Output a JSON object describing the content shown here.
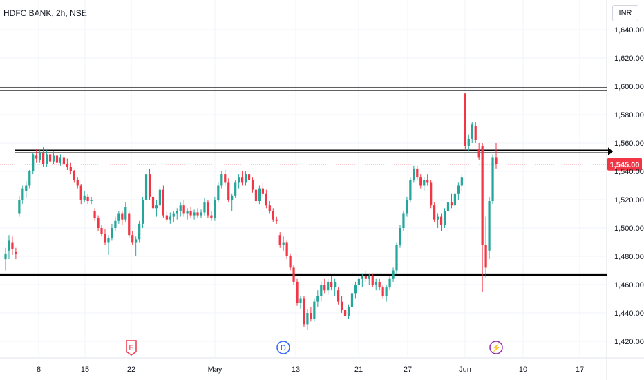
{
  "header": {
    "title": "HDFC BANK, 2h, NSE"
  },
  "currency": "INR",
  "price_label": "1,545.00",
  "colors": {
    "up": "#26a69a",
    "down": "#f23645",
    "price_line": "#f23645"
  },
  "events": [
    {
      "icon": "earnings-icon",
      "letter": "E",
      "color": "#f23645",
      "x_label": "22"
    },
    {
      "icon": "dividend-icon",
      "letter": "D",
      "color": "#2962ff",
      "x_label": "13"
    },
    {
      "icon": "split-icon",
      "letter": "⚡",
      "color": "#9c27b0",
      "x_label": "Jun"
    }
  ],
  "chart_data": {
    "type": "candlestick",
    "title": "HDFC BANK, 2h, NSE",
    "currency": "INR",
    "last_price": 1545.0,
    "ylim": [
      1410,
      1660
    ],
    "y_ticks": [
      1420,
      1440,
      1460,
      1480,
      1500,
      1520,
      1540,
      1560,
      1580,
      1600,
      1620,
      1640
    ],
    "y_tick_labels": [
      "1,420.00",
      "1,440.00",
      "1,460.00",
      "1,480.00",
      "1,500.00",
      "1,520.00",
      "1,540.00",
      "1,560.00",
      "1,580.00",
      "1,600.00",
      "1,620.00",
      "1,640.00"
    ],
    "x_tick_labels": [
      "8",
      "15",
      "22",
      "May",
      "13",
      "21",
      "27",
      "Jun",
      "10",
      "17"
    ],
    "horizontal_levels": [
      1598,
      1554,
      1467
    ],
    "candles": [
      {
        "o": 1478,
        "h": 1486,
        "l": 1470,
        "c": 1482
      },
      {
        "o": 1484,
        "h": 1495,
        "l": 1478,
        "c": 1491
      },
      {
        "o": 1490,
        "h": 1494,
        "l": 1481,
        "c": 1485
      },
      {
        "o": 1483,
        "h": 1486,
        "l": 1478,
        "c": 1482
      },
      {
        "o": 1510,
        "h": 1523,
        "l": 1508,
        "c": 1520
      },
      {
        "o": 1520,
        "h": 1530,
        "l": 1517,
        "c": 1528
      },
      {
        "o": 1526,
        "h": 1533,
        "l": 1521,
        "c": 1530
      },
      {
        "o": 1530,
        "h": 1541,
        "l": 1528,
        "c": 1540
      },
      {
        "o": 1540,
        "h": 1553,
        "l": 1538,
        "c": 1552
      },
      {
        "o": 1551,
        "h": 1556,
        "l": 1546,
        "c": 1549
      },
      {
        "o": 1548,
        "h": 1556,
        "l": 1546,
        "c": 1553
      },
      {
        "o": 1553,
        "h": 1557,
        "l": 1543,
        "c": 1545
      },
      {
        "o": 1545,
        "h": 1555,
        "l": 1543,
        "c": 1552
      },
      {
        "o": 1552,
        "h": 1555,
        "l": 1545,
        "c": 1547
      },
      {
        "o": 1547,
        "h": 1554,
        "l": 1545,
        "c": 1551
      },
      {
        "o": 1551,
        "h": 1553,
        "l": 1544,
        "c": 1546
      },
      {
        "o": 1546,
        "h": 1552,
        "l": 1544,
        "c": 1550
      },
      {
        "o": 1550,
        "h": 1552,
        "l": 1543,
        "c": 1545
      },
      {
        "o": 1545,
        "h": 1549,
        "l": 1541,
        "c": 1543
      },
      {
        "o": 1543,
        "h": 1546,
        "l": 1538,
        "c": 1540
      },
      {
        "o": 1540,
        "h": 1541,
        "l": 1532,
        "c": 1534
      },
      {
        "o": 1534,
        "h": 1536,
        "l": 1528,
        "c": 1530
      },
      {
        "o": 1530,
        "h": 1531,
        "l": 1517,
        "c": 1520
      },
      {
        "o": 1520,
        "h": 1526,
        "l": 1518,
        "c": 1523
      },
      {
        "o": 1522,
        "h": 1524,
        "l": 1517,
        "c": 1519
      },
      {
        "o": 1519,
        "h": 1522,
        "l": 1517,
        "c": 1520
      },
      {
        "o": 1512,
        "h": 1514,
        "l": 1505,
        "c": 1507
      },
      {
        "o": 1507,
        "h": 1509,
        "l": 1498,
        "c": 1500
      },
      {
        "o": 1500,
        "h": 1502,
        "l": 1494,
        "c": 1496
      },
      {
        "o": 1496,
        "h": 1499,
        "l": 1488,
        "c": 1490
      },
      {
        "o": 1490,
        "h": 1495,
        "l": 1481,
        "c": 1493
      },
      {
        "o": 1493,
        "h": 1503,
        "l": 1491,
        "c": 1500
      },
      {
        "o": 1500,
        "h": 1508,
        "l": 1498,
        "c": 1505
      },
      {
        "o": 1505,
        "h": 1512,
        "l": 1503,
        "c": 1510
      },
      {
        "o": 1510,
        "h": 1512,
        "l": 1502,
        "c": 1506
      },
      {
        "o": 1506,
        "h": 1518,
        "l": 1504,
        "c": 1515
      },
      {
        "o": 1510,
        "h": 1512,
        "l": 1493,
        "c": 1495
      },
      {
        "o": 1495,
        "h": 1498,
        "l": 1488,
        "c": 1490
      },
      {
        "o": 1490,
        "h": 1494,
        "l": 1480,
        "c": 1492
      },
      {
        "o": 1492,
        "h": 1505,
        "l": 1490,
        "c": 1503
      },
      {
        "o": 1503,
        "h": 1522,
        "l": 1500,
        "c": 1520
      },
      {
        "o": 1520,
        "h": 1542,
        "l": 1517,
        "c": 1538
      },
      {
        "o": 1538,
        "h": 1542,
        "l": 1520,
        "c": 1522
      },
      {
        "o": 1522,
        "h": 1526,
        "l": 1512,
        "c": 1514
      },
      {
        "o": 1514,
        "h": 1520,
        "l": 1508,
        "c": 1516
      },
      {
        "o": 1516,
        "h": 1530,
        "l": 1512,
        "c": 1527
      },
      {
        "o": 1527,
        "h": 1530,
        "l": 1507,
        "c": 1509
      },
      {
        "o": 1509,
        "h": 1512,
        "l": 1504,
        "c": 1506
      },
      {
        "o": 1506,
        "h": 1511,
        "l": 1503,
        "c": 1508
      },
      {
        "o": 1508,
        "h": 1512,
        "l": 1504,
        "c": 1510
      },
      {
        "o": 1510,
        "h": 1514,
        "l": 1506,
        "c": 1512
      },
      {
        "o": 1512,
        "h": 1518,
        "l": 1508,
        "c": 1516
      },
      {
        "o": 1516,
        "h": 1520,
        "l": 1508,
        "c": 1510
      },
      {
        "o": 1510,
        "h": 1514,
        "l": 1506,
        "c": 1512
      },
      {
        "o": 1512,
        "h": 1515,
        "l": 1507,
        "c": 1509
      },
      {
        "o": 1509,
        "h": 1513,
        "l": 1506,
        "c": 1511
      },
      {
        "o": 1511,
        "h": 1514,
        "l": 1507,
        "c": 1509
      },
      {
        "o": 1509,
        "h": 1513,
        "l": 1507,
        "c": 1511
      },
      {
        "o": 1511,
        "h": 1521,
        "l": 1509,
        "c": 1518
      },
      {
        "o": 1518,
        "h": 1520,
        "l": 1507,
        "c": 1509
      },
      {
        "o": 1509,
        "h": 1512,
        "l": 1505,
        "c": 1507
      },
      {
        "o": 1507,
        "h": 1522,
        "l": 1505,
        "c": 1520
      },
      {
        "o": 1520,
        "h": 1532,
        "l": 1518,
        "c": 1530
      },
      {
        "o": 1530,
        "h": 1540,
        "l": 1528,
        "c": 1538
      },
      {
        "o": 1538,
        "h": 1541,
        "l": 1530,
        "c": 1532
      },
      {
        "o": 1532,
        "h": 1535,
        "l": 1518,
        "c": 1520
      },
      {
        "o": 1520,
        "h": 1524,
        "l": 1512,
        "c": 1523
      },
      {
        "o": 1523,
        "h": 1534,
        "l": 1521,
        "c": 1532
      },
      {
        "o": 1532,
        "h": 1538,
        "l": 1528,
        "c": 1536
      },
      {
        "o": 1536,
        "h": 1540,
        "l": 1530,
        "c": 1532
      },
      {
        "o": 1532,
        "h": 1540,
        "l": 1530,
        "c": 1538
      },
      {
        "o": 1538,
        "h": 1540,
        "l": 1532,
        "c": 1534
      },
      {
        "o": 1534,
        "h": 1536,
        "l": 1525,
        "c": 1527
      },
      {
        "o": 1527,
        "h": 1529,
        "l": 1517,
        "c": 1519
      },
      {
        "o": 1519,
        "h": 1530,
        "l": 1517,
        "c": 1528
      },
      {
        "o": 1528,
        "h": 1532,
        "l": 1522,
        "c": 1524
      },
      {
        "o": 1524,
        "h": 1527,
        "l": 1514,
        "c": 1516
      },
      {
        "o": 1516,
        "h": 1519,
        "l": 1510,
        "c": 1512
      },
      {
        "o": 1512,
        "h": 1514,
        "l": 1504,
        "c": 1506
      },
      {
        "o": 1506,
        "h": 1508,
        "l": 1503,
        "c": 1505
      },
      {
        "o": 1495,
        "h": 1497,
        "l": 1486,
        "c": 1488
      },
      {
        "o": 1488,
        "h": 1494,
        "l": 1484,
        "c": 1490
      },
      {
        "o": 1490,
        "h": 1491,
        "l": 1478,
        "c": 1480
      },
      {
        "o": 1480,
        "h": 1482,
        "l": 1470,
        "c": 1472
      },
      {
        "o": 1472,
        "h": 1474,
        "l": 1460,
        "c": 1462
      },
      {
        "o": 1462,
        "h": 1464,
        "l": 1445,
        "c": 1447
      },
      {
        "o": 1447,
        "h": 1452,
        "l": 1443,
        "c": 1450
      },
      {
        "o": 1450,
        "h": 1452,
        "l": 1430,
        "c": 1432
      },
      {
        "o": 1432,
        "h": 1443,
        "l": 1428,
        "c": 1440
      },
      {
        "o": 1440,
        "h": 1444,
        "l": 1434,
        "c": 1436
      },
      {
        "o": 1436,
        "h": 1450,
        "l": 1434,
        "c": 1448
      },
      {
        "o": 1448,
        "h": 1456,
        "l": 1444,
        "c": 1452
      },
      {
        "o": 1452,
        "h": 1462,
        "l": 1448,
        "c": 1460
      },
      {
        "o": 1460,
        "h": 1464,
        "l": 1454,
        "c": 1456
      },
      {
        "o": 1456,
        "h": 1464,
        "l": 1453,
        "c": 1462
      },
      {
        "o": 1462,
        "h": 1466,
        "l": 1456,
        "c": 1458
      },
      {
        "o": 1458,
        "h": 1464,
        "l": 1452,
        "c": 1462
      },
      {
        "o": 1456,
        "h": 1458,
        "l": 1446,
        "c": 1448
      },
      {
        "o": 1448,
        "h": 1452,
        "l": 1440,
        "c": 1442
      },
      {
        "o": 1442,
        "h": 1446,
        "l": 1436,
        "c": 1438
      },
      {
        "o": 1438,
        "h": 1446,
        "l": 1436,
        "c": 1444
      },
      {
        "o": 1444,
        "h": 1456,
        "l": 1442,
        "c": 1454
      },
      {
        "o": 1454,
        "h": 1462,
        "l": 1450,
        "c": 1460
      },
      {
        "o": 1460,
        "h": 1466,
        "l": 1456,
        "c": 1464
      },
      {
        "o": 1464,
        "h": 1468,
        "l": 1458,
        "c": 1466
      },
      {
        "o": 1466,
        "h": 1470,
        "l": 1462,
        "c": 1464
      },
      {
        "o": 1464,
        "h": 1468,
        "l": 1460,
        "c": 1466
      },
      {
        "o": 1466,
        "h": 1468,
        "l": 1458,
        "c": 1460
      },
      {
        "o": 1460,
        "h": 1464,
        "l": 1456,
        "c": 1462
      },
      {
        "o": 1462,
        "h": 1464,
        "l": 1456,
        "c": 1458
      },
      {
        "o": 1458,
        "h": 1460,
        "l": 1450,
        "c": 1452
      },
      {
        "o": 1452,
        "h": 1460,
        "l": 1448,
        "c": 1458
      },
      {
        "o": 1458,
        "h": 1466,
        "l": 1456,
        "c": 1464
      },
      {
        "o": 1464,
        "h": 1472,
        "l": 1462,
        "c": 1470
      },
      {
        "o": 1470,
        "h": 1490,
        "l": 1468,
        "c": 1488
      },
      {
        "o": 1488,
        "h": 1502,
        "l": 1486,
        "c": 1500
      },
      {
        "o": 1500,
        "h": 1512,
        "l": 1498,
        "c": 1510
      },
      {
        "o": 1510,
        "h": 1522,
        "l": 1508,
        "c": 1520
      },
      {
        "o": 1520,
        "h": 1536,
        "l": 1518,
        "c": 1534
      },
      {
        "o": 1534,
        "h": 1544,
        "l": 1532,
        "c": 1542
      },
      {
        "o": 1542,
        "h": 1544,
        "l": 1534,
        "c": 1536
      },
      {
        "o": 1536,
        "h": 1538,
        "l": 1528,
        "c": 1530
      },
      {
        "o": 1530,
        "h": 1536,
        "l": 1526,
        "c": 1534
      },
      {
        "o": 1534,
        "h": 1538,
        "l": 1530,
        "c": 1532
      },
      {
        "o": 1532,
        "h": 1534,
        "l": 1514,
        "c": 1516
      },
      {
        "o": 1516,
        "h": 1518,
        "l": 1504,
        "c": 1506
      },
      {
        "o": 1506,
        "h": 1510,
        "l": 1500,
        "c": 1508
      },
      {
        "o": 1508,
        "h": 1510,
        "l": 1498,
        "c": 1502
      },
      {
        "o": 1502,
        "h": 1514,
        "l": 1500,
        "c": 1512
      },
      {
        "o": 1512,
        "h": 1520,
        "l": 1508,
        "c": 1518
      },
      {
        "o": 1518,
        "h": 1524,
        "l": 1514,
        "c": 1516
      },
      {
        "o": 1516,
        "h": 1526,
        "l": 1514,
        "c": 1524
      },
      {
        "o": 1524,
        "h": 1532,
        "l": 1520,
        "c": 1530
      },
      {
        "o": 1530,
        "h": 1538,
        "l": 1526,
        "c": 1536
      },
      {
        "o": 1595,
        "h": 1595,
        "l": 1555,
        "c": 1558
      },
      {
        "o": 1558,
        "h": 1566,
        "l": 1554,
        "c": 1563
      },
      {
        "o": 1563,
        "h": 1575,
        "l": 1560,
        "c": 1573
      },
      {
        "o": 1572,
        "h": 1575,
        "l": 1560,
        "c": 1562
      },
      {
        "o": 1556,
        "h": 1560,
        "l": 1548,
        "c": 1550
      },
      {
        "o": 1558,
        "h": 1560,
        "l": 1455,
        "c": 1488
      },
      {
        "o": 1488,
        "h": 1508,
        "l": 1465,
        "c": 1472
      },
      {
        "o": 1484,
        "h": 1522,
        "l": 1478,
        "c": 1519
      },
      {
        "o": 1519,
        "h": 1552,
        "l": 1517,
        "c": 1550
      },
      {
        "o": 1550,
        "h": 1560,
        "l": 1542,
        "c": 1545
      }
    ]
  }
}
